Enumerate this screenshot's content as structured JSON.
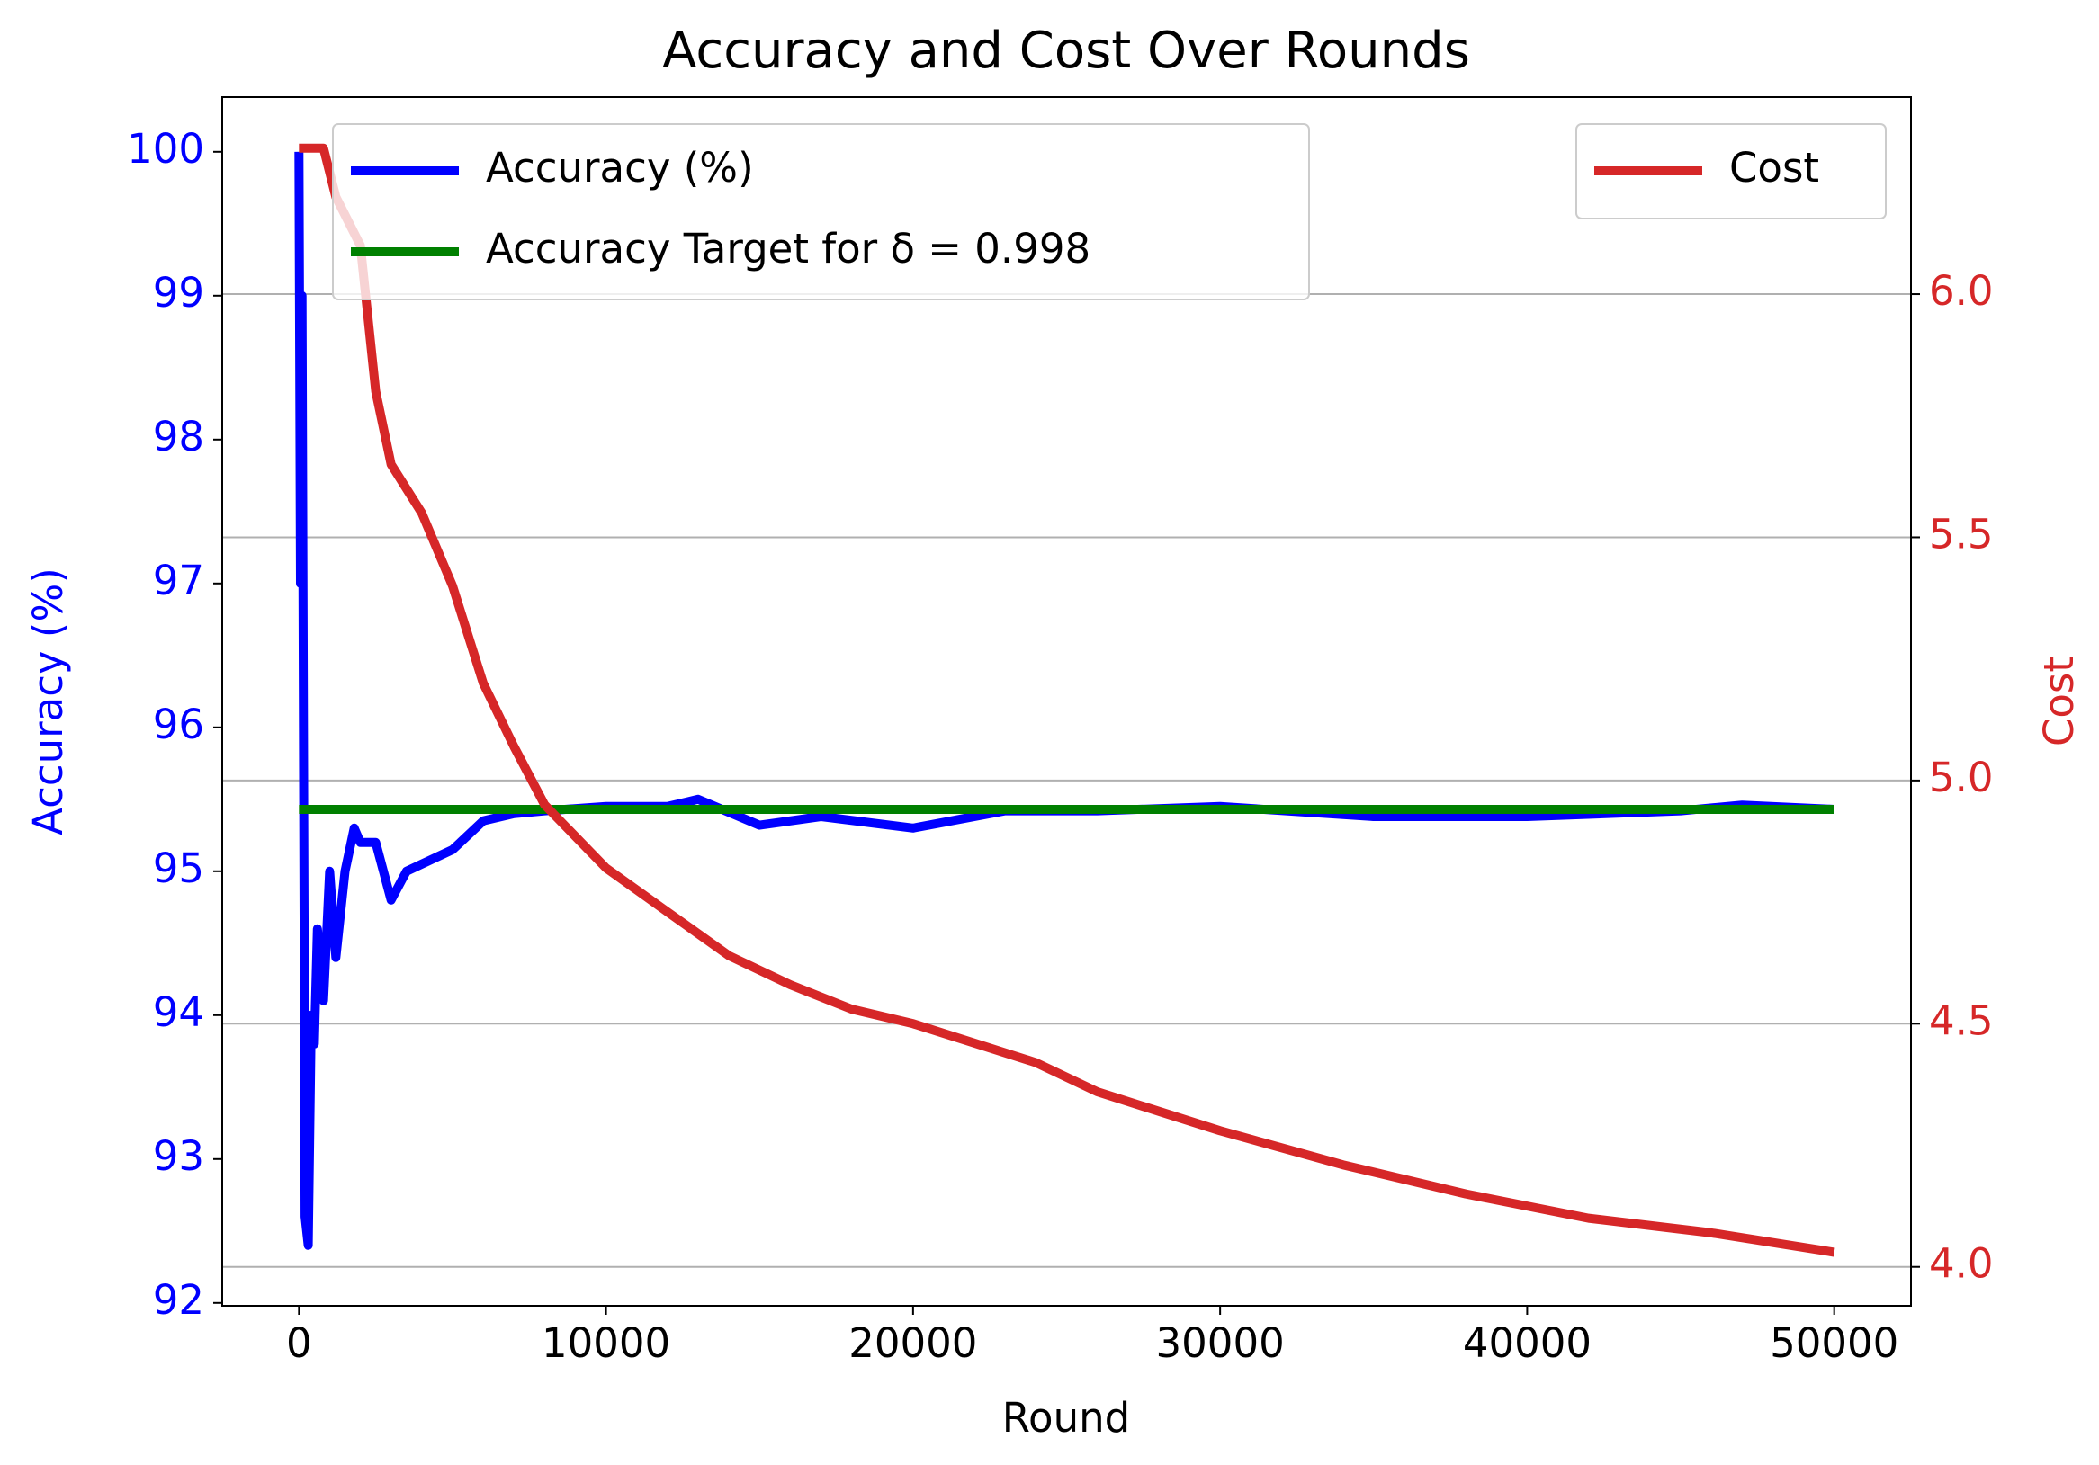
{
  "chart_data": {
    "type": "line",
    "title": "Accuracy and Cost Over Rounds",
    "xlabel": "Round",
    "ylabel": "Accuracy (%)",
    "y2label": "Cost",
    "xlim": [
      -2500,
      52500
    ],
    "xticks": [
      0,
      10000,
      20000,
      30000,
      40000,
      50000
    ],
    "ylim": [
      91.98,
      100.38
    ],
    "yticks": [
      92,
      93,
      94,
      95,
      96,
      97,
      98,
      99,
      100
    ],
    "y2lim": [
      3.92,
      6.405
    ],
    "y2ticks": [
      {
        "value": 4,
        "label": "4.0"
      },
      4.5,
      {
        "value": 5,
        "label": "5.0"
      },
      5.5,
      {
        "value": 6,
        "label": "6.0"
      }
    ],
    "ycolor": "#0000ff",
    "y2color": "#d62728",
    "grid": "y2",
    "legend_loc": "upper left",
    "legend2_loc": "upper right",
    "series": [
      {
        "name": "Accuracy (%)",
        "color": "#0000ff",
        "x": [
          0,
          50,
          100,
          200,
          300,
          400,
          500,
          600,
          800,
          1000,
          1200,
          1500,
          1800,
          2000,
          2500,
          3000,
          3500,
          4000,
          5000,
          6000,
          7000,
          8000,
          10000,
          12000,
          13000,
          15000,
          17000,
          20000,
          23000,
          26000,
          30000,
          35000,
          40000,
          45000,
          47000,
          50000
        ],
        "values": [
          100,
          97,
          99,
          92.6,
          92.4,
          94,
          93.8,
          94.6,
          94.1,
          95,
          94.4,
          95,
          95.3,
          95.2,
          95.2,
          94.8,
          95,
          95.05,
          95.15,
          95.35,
          95.4,
          95.42,
          95.45,
          95.45,
          95.5,
          95.32,
          95.38,
          95.3,
          95.42,
          95.42,
          95.45,
          95.38,
          95.38,
          95.42,
          95.46,
          95.43
        ]
      },
      {
        "name": "Accuracy Target for δ = 0.998",
        "color": "#008000",
        "x": [
          0,
          50000
        ],
        "values": [
          95.43,
          95.43
        ]
      },
      {
        "name": "Cost",
        "color": "#d62728",
        "axis": "y2",
        "x": [
          0,
          800,
          1200,
          2000,
          2500,
          3000,
          4000,
          5000,
          6000,
          7000,
          8000,
          10000,
          12000,
          14000,
          16000,
          18000,
          20000,
          22000,
          24000,
          26000,
          28000,
          30000,
          34000,
          38000,
          42000,
          46000,
          50000
        ],
        "values": [
          6.3,
          6.3,
          6.2,
          6.1,
          5.8,
          5.65,
          5.55,
          5.4,
          5.2,
          5.07,
          4.95,
          4.82,
          4.73,
          4.64,
          4.58,
          4.53,
          4.5,
          4.46,
          4.42,
          4.36,
          4.32,
          4.28,
          4.21,
          4.15,
          4.1,
          4.07,
          4.03
        ]
      }
    ]
  }
}
